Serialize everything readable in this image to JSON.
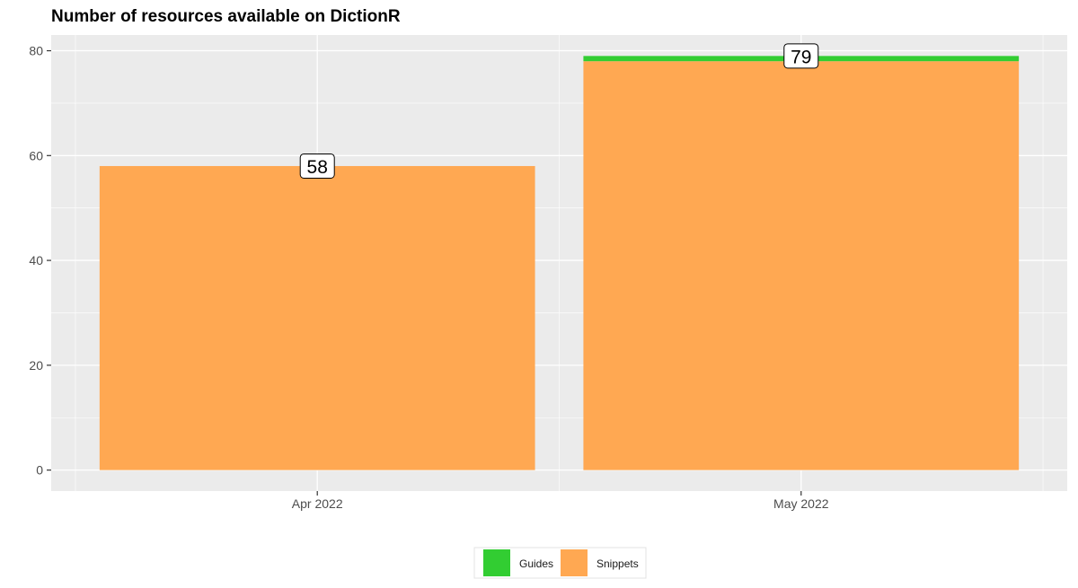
{
  "chart_data": {
    "type": "bar",
    "stacked": true,
    "title": "Number of resources available on DictionR",
    "xlabel": "",
    "ylabel": "",
    "categories": [
      "Apr 2022",
      "May 2022"
    ],
    "series": [
      {
        "name": "Snippets",
        "color": "#FFA852",
        "values": [
          58,
          78
        ]
      },
      {
        "name": "Guides",
        "color": "#32CD32",
        "values": [
          0,
          1
        ]
      }
    ],
    "totals": [
      "58",
      "79"
    ],
    "ylim": [
      -4,
      83
    ],
    "yticks": [
      "0",
      "20",
      "40",
      "60",
      "80"
    ],
    "grid": true,
    "legend": {
      "position": "bottom",
      "items": [
        "Guides",
        "Snippets"
      ]
    },
    "panel_background": "#EBEBEB"
  }
}
